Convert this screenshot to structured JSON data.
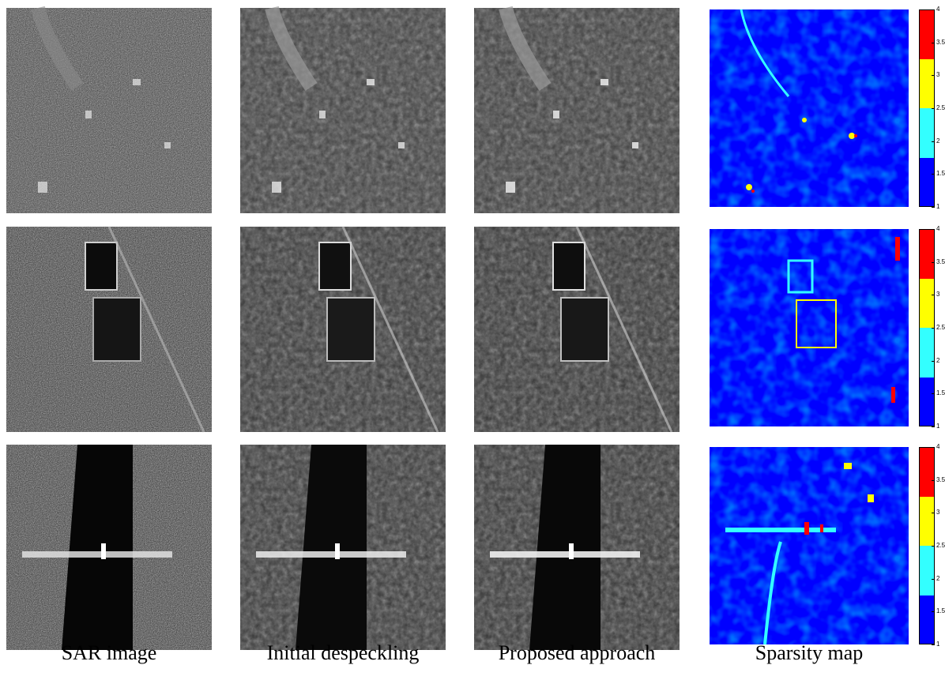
{
  "captions": {
    "col1": "SAR image",
    "col2": "Initial despeckling",
    "col3": "Proposed approach",
    "col4": "Sparsity map"
  },
  "colorbar": {
    "ticks": [
      "4",
      "3.5",
      "3",
      "2.5",
      "2",
      "1.5",
      "1"
    ],
    "colors": [
      "#ff0000",
      "#ffff00",
      "#33ffff",
      "#0000ff"
    ]
  }
}
